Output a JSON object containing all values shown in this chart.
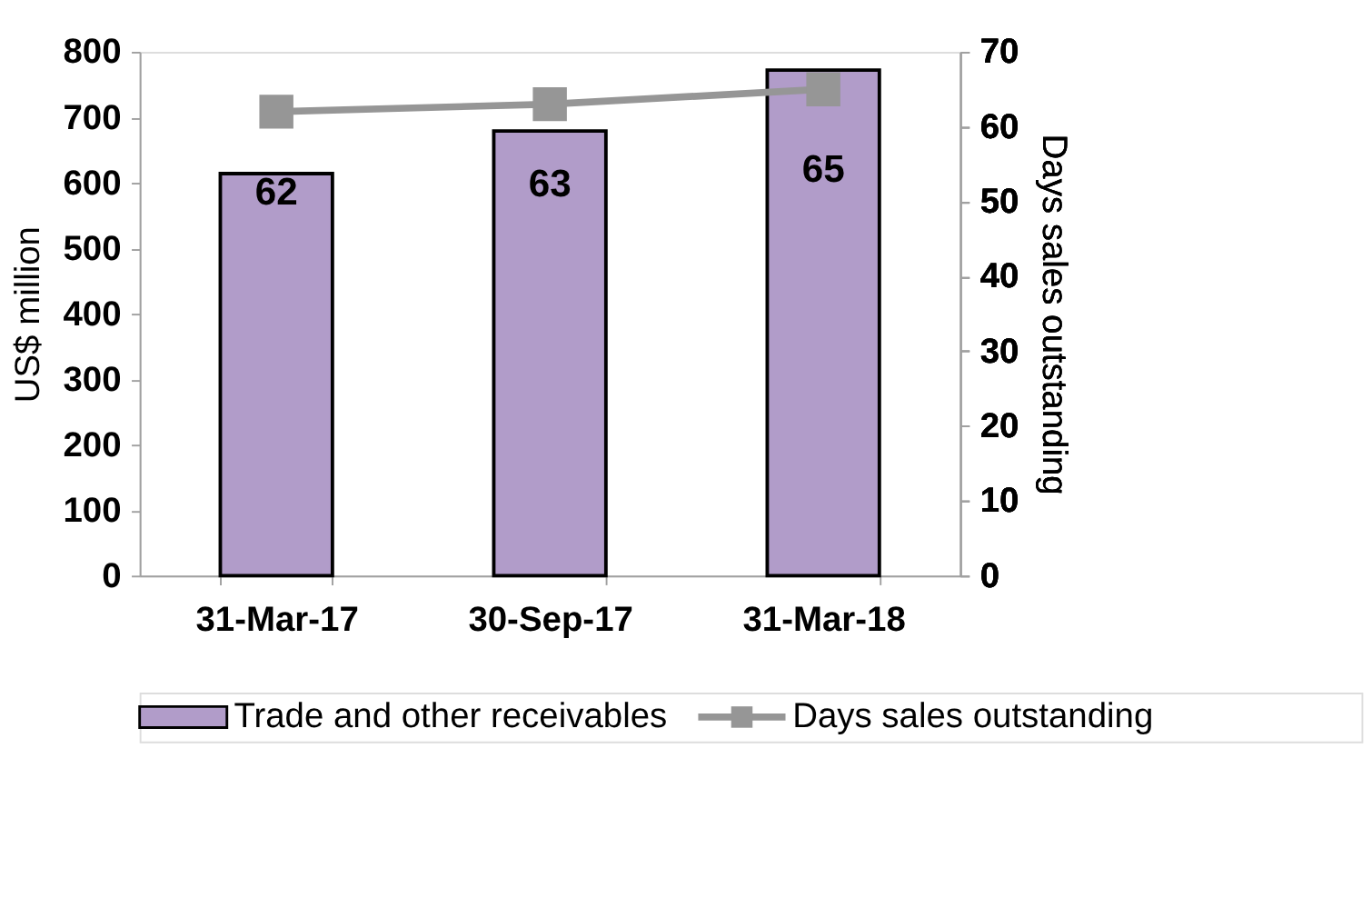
{
  "chart_data": {
    "type": "bar",
    "categories": [
      "31-Mar-17",
      "30-Sep-17",
      "31-Mar-18"
    ],
    "ylabel": "US$ million",
    "y2label": "Days sales outstanding",
    "series": [
      {
        "name": "Trade and other receivables",
        "color": "#b19cc9",
        "values": [
          614,
          679,
          772
        ]
      },
      {
        "name": "Days sales outstanding",
        "type": "line",
        "axis": "y2",
        "color": "#969696",
        "marker": "square",
        "data_labels": true,
        "values": [
          62,
          63,
          65
        ]
      }
    ],
    "ylim": [
      0,
      800
    ],
    "yticks": [
      0,
      100,
      200,
      300,
      400,
      500,
      600,
      700,
      800
    ],
    "y2lim": [
      0,
      70
    ],
    "y2ticks": [
      0,
      10,
      20,
      30,
      40,
      50,
      60,
      70
    ],
    "grid": false,
    "legend": "bottom"
  }
}
